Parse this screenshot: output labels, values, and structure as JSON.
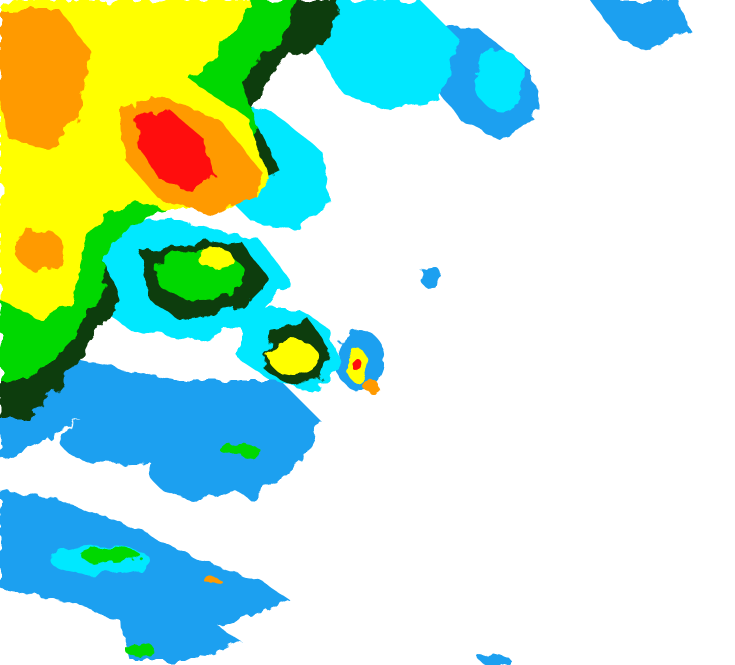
{
  "map": {
    "type": "weather-radar-reflectivity",
    "background": "#ffffff",
    "intensity_colors": {
      "light_blue": "#1ea0f0",
      "cyan": "#00e8ff",
      "green": "#00d800",
      "dark_green": "#0a3c0a",
      "yellow": "#ffff00",
      "orange": "#ff9a00",
      "red": "#ff1010"
    }
  }
}
